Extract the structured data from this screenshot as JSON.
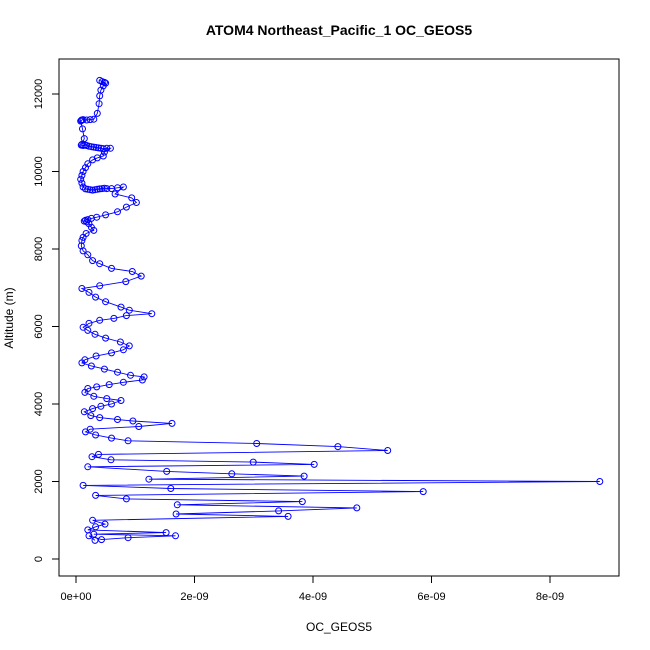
{
  "chart_data": {
    "type": "line",
    "title": "ATOM4 Northeast_Pacific_1 OC_GEOS5",
    "xlabel": "OC_GEOS5",
    "ylabel": "Altitude (m)",
    "xlim": [
      0,
      9e-09
    ],
    "ylim": [
      0,
      12500
    ],
    "x_ticks": [
      0,
      2e-09,
      4e-09,
      6e-09,
      8e-09
    ],
    "x_tick_labels": [
      "0e+00",
      "2e-09",
      "4e-09",
      "6e-09",
      "8e-09"
    ],
    "y_ticks": [
      0,
      2000,
      4000,
      6000,
      8000,
      10000,
      12000
    ],
    "y_tick_labels": [
      "0",
      "2000",
      "4000",
      "6000",
      "8000",
      "10000",
      "12000"
    ],
    "marker": "open-circle",
    "color": "#0000ff",
    "grid": false,
    "series": [
      {
        "x": [
          4e-10,
          4.4e-10,
          4.8e-10,
          5e-10,
          4.6e-10,
          4.2e-10,
          4e-10,
          3.9e-10,
          3.6e-10,
          3e-10,
          2.4e-10,
          1.8e-10,
          1.2e-10,
          1e-10,
          9e-11,
          8e-11,
          1.1e-10,
          1.4e-10,
          1e-10,
          9e-11,
          1.2e-10,
          1.5e-10,
          1.8e-10,
          2.2e-10,
          2.6e-10,
          3e-10,
          3.4e-10,
          3.8e-10,
          4.2e-10,
          4.6e-10,
          5.2e-10,
          5.8e-10,
          4.8e-10,
          4.6e-10,
          3.6e-10,
          2.8e-10,
          2e-10,
          1.6e-10,
          1.2e-10,
          1e-10,
          8e-11,
          1e-10,
          1.2e-10,
          1.6e-10,
          2e-10,
          2.4e-10,
          2.8e-10,
          3.2e-10,
          3.6e-10,
          4e-10,
          4.4e-10,
          4.8e-10,
          5.2e-10,
          6e-10,
          7e-10,
          8e-10,
          6.6e-10,
          9.4e-10,
          1.02e-09,
          8.5e-10,
          7e-10,
          5e-10,
          3.5e-10,
          2.6e-10,
          2e-10,
          1.6e-10,
          1.4e-10,
          1.8e-10,
          2.2e-10,
          2.6e-10,
          3e-10,
          1.7e-10,
          1.2e-10,
          1e-10,
          9e-11,
          1.2e-10,
          2e-10,
          2.8e-10,
          4e-10,
          6e-10,
          9.5e-10,
          1.1e-09,
          8.4e-10,
          4e-10,
          1e-10,
          2.2e-10,
          3.3e-10,
          5e-10,
          7.6e-10,
          9e-10,
          1.28e-09,
          8.5e-10,
          6.4e-10,
          4e-10,
          2.2e-10,
          1.2e-10,
          2e-10,
          3.2e-10,
          5e-10,
          7.5e-10,
          9e-10,
          8e-10,
          6e-10,
          3.4e-10,
          1.5e-10,
          1e-10,
          2.6e-10,
          4.8e-10,
          7e-10,
          9.2e-10,
          1.15e-09,
          1.12e-09,
          8e-10,
          5.6e-10,
          3.5e-10,
          2e-10,
          1.5e-10,
          3e-10,
          5.2e-10,
          7.6e-10,
          6e-10,
          4.2e-10,
          2.8e-10,
          1.4e-10,
          2.5e-10,
          4e-10,
          7e-10,
          9.6e-10,
          1.62e-09,
          1.06e-09,
          2.4e-10,
          1.6e-10,
          3.3e-10,
          6e-10,
          8.8e-10,
          3.05e-09,
          4.42e-09,
          5.26e-09,
          3.8e-10,
          2.7e-10,
          5.9e-10,
          2.99e-09,
          4.02e-09,
          2e-10,
          1.53e-09,
          2.63e-09,
          3.85e-09,
          1.23e-09,
          8.84e-09,
          1.2e-10,
          1.6e-09,
          5.86e-09,
          3.3e-10,
          8.5e-10,
          3.82e-09,
          1.71e-09,
          4.74e-09,
          3.42e-09,
          1.69e-09,
          3.58e-09,
          2.8e-10,
          4.9e-10,
          3.3e-10,
          2e-10,
          1.52e-09,
          3e-10,
          1.68e-09,
          8.8e-10,
          4.3e-10,
          2.2e-10,
          3.2e-10
        ],
        "y": [
          12350,
          12320,
          12300,
          12280,
          12210,
          12100,
          11950,
          11750,
          11500,
          11350,
          11340,
          11330,
          11340,
          11330,
          11320,
          11300,
          11100,
          10850,
          10700,
          10680,
          10670,
          10680,
          10670,
          10650,
          10640,
          10630,
          10620,
          10610,
          10600,
          10590,
          10600,
          10600,
          10500,
          10400,
          10350,
          10300,
          10200,
          10100,
          10000,
          9900,
          9800,
          9700,
          9600,
          9550,
          9540,
          9530,
          9520,
          9530,
          9540,
          9550,
          9560,
          9570,
          9560,
          9560,
          9580,
          9600,
          9420,
          9320,
          9200,
          9080,
          8960,
          8880,
          8820,
          8790,
          8760,
          8740,
          8720,
          8700,
          8650,
          8560,
          8480,
          8400,
          8300,
          8220,
          8080,
          7950,
          7850,
          7700,
          7620,
          7500,
          7420,
          7300,
          7160,
          7050,
          6980,
          6880,
          6760,
          6640,
          6500,
          6420,
          6330,
          6280,
          6210,
          6160,
          6080,
          5980,
          5900,
          5800,
          5700,
          5600,
          5500,
          5400,
          5320,
          5240,
          5140,
          5060,
          4980,
          4900,
          4820,
          4740,
          4700,
          4620,
          4560,
          4500,
          4440,
          4400,
          4300,
          4200,
          4140,
          4090,
          4000,
          3940,
          3880,
          3800,
          3700,
          3650,
          3600,
          3560,
          3500,
          3420,
          3350,
          3280,
          3200,
          3120,
          3050,
          2980,
          2900,
          2800,
          2700,
          2640,
          2560,
          2500,
          2440,
          2380,
          2260,
          2200,
          2140,
          2060,
          2000,
          1900,
          1820,
          1740,
          1640,
          1550,
          1480,
          1400,
          1320,
          1240,
          1160,
          1100,
          1000,
          900,
          830,
          750,
          680,
          640,
          600,
          550,
          500,
          600,
          480
        ],
        "values": [
          12350,
          12320,
          12300,
          12280,
          12210,
          12100,
          11950,
          11750,
          11500,
          11350,
          11340,
          11330,
          11340,
          11330,
          11320,
          11300,
          11100,
          10850,
          10700,
          10680,
          10670,
          10680,
          10670,
          10650,
          10640,
          10630,
          10620,
          10610,
          10600,
          10590,
          10600,
          10600,
          10500,
          10400,
          10350,
          10300,
          10200,
          10100,
          10000,
          9900,
          9800,
          9700,
          9600,
          9550,
          9540,
          9530,
          9520,
          9530,
          9540,
          9550,
          9560,
          9570,
          9560,
          9560,
          9580,
          9600,
          9420,
          9320,
          9200,
          9080,
          8960,
          8880,
          8820,
          8790,
          8760,
          8740,
          8720,
          8700,
          8650,
          8560,
          8480,
          8400,
          8300,
          8220,
          8080,
          7950,
          7850,
          7700,
          7620,
          7500,
          7420,
          7300,
          7160,
          7050,
          6980,
          6880,
          6760,
          6640,
          6500,
          6420,
          6330,
          6280,
          6210,
          6160,
          6080,
          5980,
          5900,
          5800,
          5700,
          5600,
          5500,
          5400,
          5320,
          5240,
          5140,
          5060,
          4980,
          4900,
          4820,
          4740,
          4700,
          4620,
          4560,
          4500,
          4440,
          4400,
          4300,
          4200,
          4140,
          4090,
          4000,
          3940,
          3880,
          3800,
          3700,
          3650,
          3600,
          3560,
          3500,
          3420,
          3350,
          3280,
          3200,
          3120,
          3050,
          2980,
          2900,
          2800,
          2700,
          2640,
          2560,
          2500,
          2440,
          2380,
          2260,
          2200,
          2140,
          2060,
          2000,
          1900,
          1820,
          1740,
          1640,
          1550,
          1480,
          1400,
          1320,
          1240,
          1160,
          1100,
          1000,
          900,
          830,
          750,
          680,
          640,
          600,
          550,
          500,
          600,
          480
        ]
      }
    ]
  }
}
